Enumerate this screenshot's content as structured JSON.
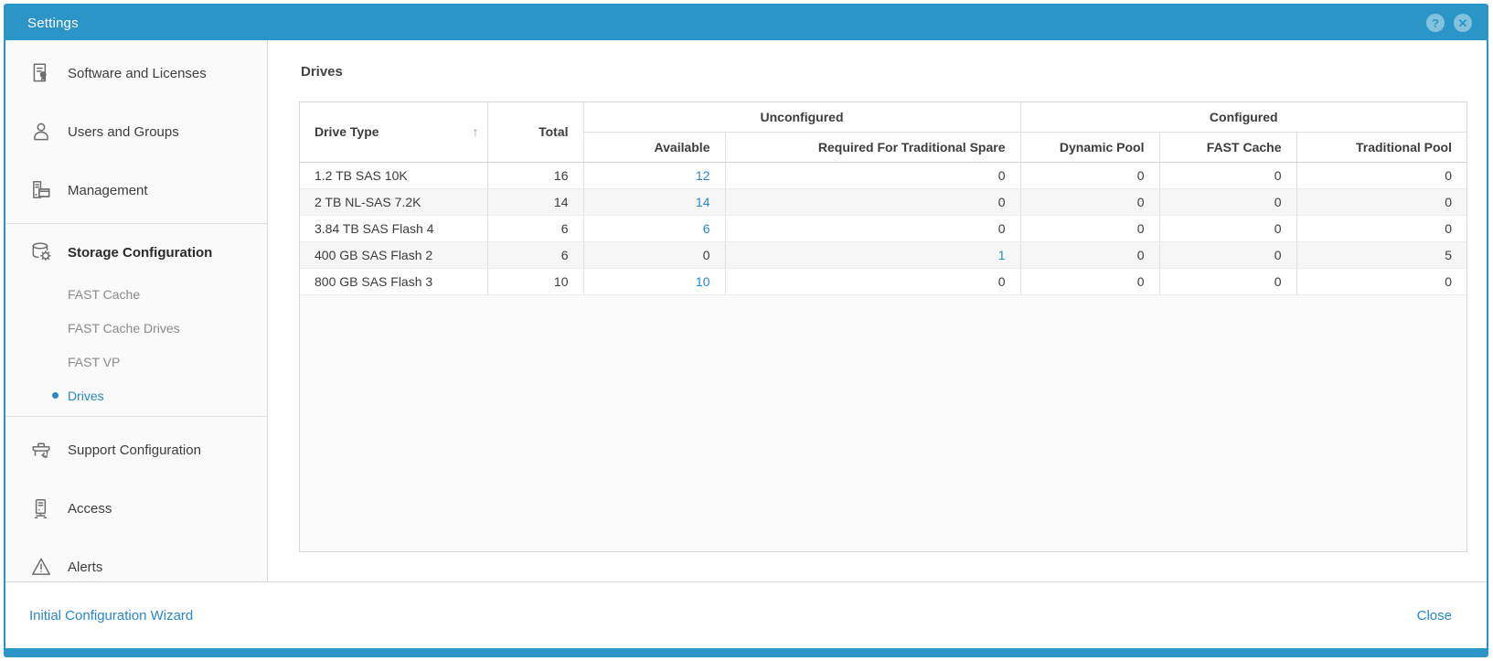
{
  "colors": {
    "accent": "#2C95C8",
    "link": "#2789CB"
  },
  "titlebar": {
    "title": "Settings",
    "help_glyph": "?",
    "close_glyph": "✕"
  },
  "sidebar": {
    "groups": [
      {
        "items": [
          {
            "label": "Software and Licenses",
            "icon": "certificate-icon"
          },
          {
            "label": "Users and Groups",
            "icon": "user-icon"
          },
          {
            "label": "Management",
            "icon": "management-icon"
          }
        ]
      },
      {
        "section": {
          "label": "Storage Configuration",
          "icon": "storage-gear-icon"
        },
        "subitems": [
          {
            "label": "FAST Cache",
            "active": false
          },
          {
            "label": "FAST Cache Drives",
            "active": false
          },
          {
            "label": "FAST VP",
            "active": false
          },
          {
            "label": "Drives",
            "active": true
          }
        ]
      },
      {
        "items": [
          {
            "label": "Support Configuration",
            "icon": "toolbox-icon"
          },
          {
            "label": "Access",
            "icon": "server-icon"
          },
          {
            "label": "Alerts",
            "icon": "warning-icon"
          }
        ]
      }
    ]
  },
  "main": {
    "heading": "Drives",
    "table": {
      "sort_icon": "↑",
      "drive_type_header": "Drive Type",
      "total_header": "Total",
      "group_headers": {
        "unconfigured": "Unconfigured",
        "configured": "Configured"
      },
      "sub_headers": {
        "available": "Available",
        "required_spare": "Required For Traditional Spare",
        "dynamic_pool": "Dynamic Pool",
        "fast_cache": "FAST Cache",
        "traditional_pool": "Traditional Pool"
      },
      "rows": [
        {
          "cells": [
            {
              "text": "1.2 TB SAS 10K",
              "link": false
            },
            {
              "text": "16",
              "link": false
            },
            {
              "text": "12",
              "link": true
            },
            {
              "text": "0",
              "link": false
            },
            {
              "text": "0",
              "link": false
            },
            {
              "text": "0",
              "link": false
            },
            {
              "text": "0",
              "link": false
            }
          ]
        },
        {
          "cells": [
            {
              "text": "2 TB NL-SAS 7.2K",
              "link": false
            },
            {
              "text": "14",
              "link": false
            },
            {
              "text": "14",
              "link": true
            },
            {
              "text": "0",
              "link": false
            },
            {
              "text": "0",
              "link": false
            },
            {
              "text": "0",
              "link": false
            },
            {
              "text": "0",
              "link": false
            }
          ]
        },
        {
          "cells": [
            {
              "text": "3.84 TB SAS Flash 4",
              "link": false
            },
            {
              "text": "6",
              "link": false
            },
            {
              "text": "6",
              "link": true
            },
            {
              "text": "0",
              "link": false
            },
            {
              "text": "0",
              "link": false
            },
            {
              "text": "0",
              "link": false
            },
            {
              "text": "0",
              "link": false
            }
          ]
        },
        {
          "cells": [
            {
              "text": "400 GB SAS Flash 2",
              "link": false
            },
            {
              "text": "6",
              "link": false
            },
            {
              "text": "0",
              "link": false
            },
            {
              "text": "1",
              "link": true
            },
            {
              "text": "0",
              "link": false
            },
            {
              "text": "0",
              "link": false
            },
            {
              "text": "5",
              "link": false
            }
          ]
        },
        {
          "cells": [
            {
              "text": "800 GB SAS Flash 3",
              "link": false
            },
            {
              "text": "10",
              "link": false
            },
            {
              "text": "10",
              "link": true
            },
            {
              "text": "0",
              "link": false
            },
            {
              "text": "0",
              "link": false
            },
            {
              "text": "0",
              "link": false
            },
            {
              "text": "0",
              "link": false
            }
          ]
        }
      ]
    }
  },
  "footer": {
    "wizard_link": "Initial Configuration Wizard",
    "close_link": "Close"
  }
}
